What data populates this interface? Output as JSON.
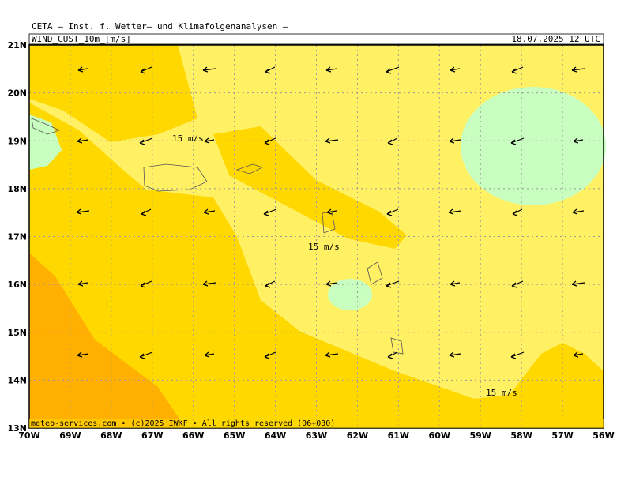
{
  "header": {
    "title": "CETA — Inst. f. Wetter— und Klimafolgenanalysen —",
    "parameter": "WIND_GUST_10m_[m/s]",
    "valid_time": "18.07.2025 12 UTC"
  },
  "map": {
    "lat_labels": [
      "21N",
      "20N",
      "19N",
      "18N",
      "17N",
      "16N",
      "15N",
      "14N",
      "13N"
    ],
    "lon_labels": [
      "70W",
      "69W",
      "68W",
      "67W",
      "66W",
      "65W",
      "64W",
      "63W",
      "62W",
      "61W",
      "60W",
      "59W",
      "58W",
      "57W",
      "56W"
    ],
    "contour_labels": [
      "15 m/s",
      "15 m/s",
      "15 m/s"
    ]
  },
  "footer": "meteo-services.com • (c)2025 IWKF • All rights reserved (06+030)"
}
